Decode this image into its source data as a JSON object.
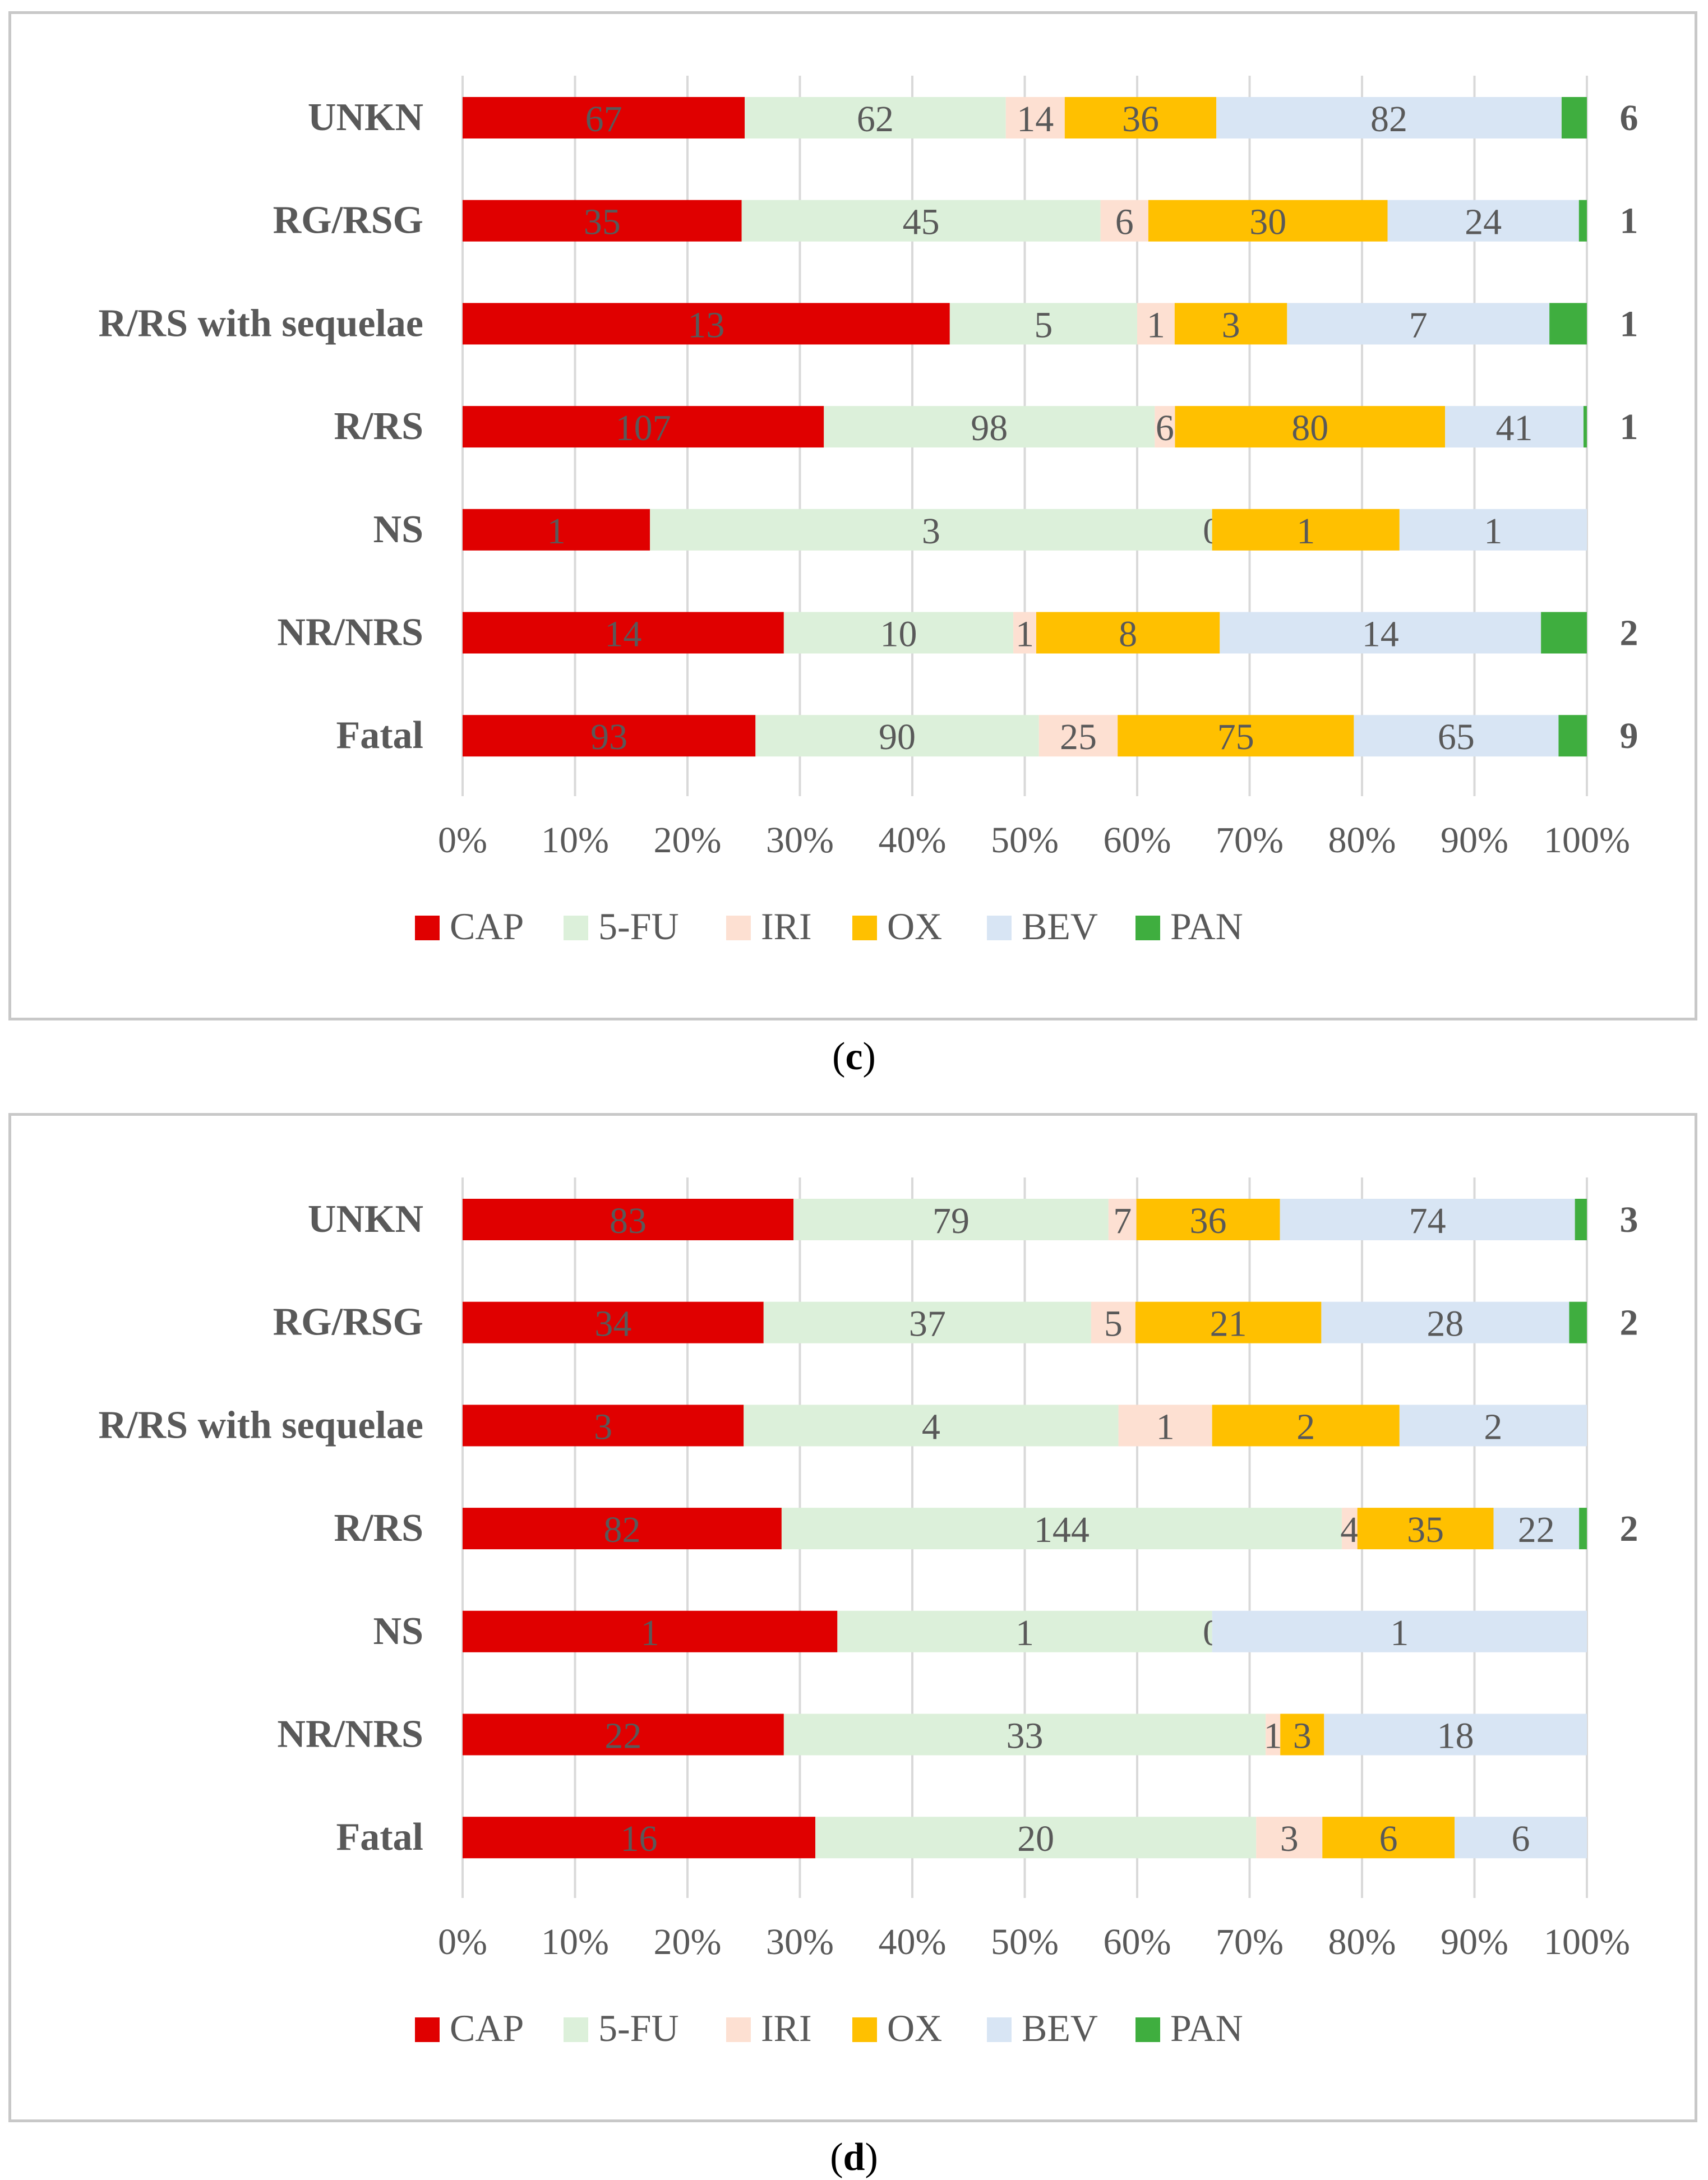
{
  "colors": {
    "CAP": "#e00000",
    "5-FU": "#dcf0da",
    "IRI": "#fde0d2",
    "OX": "#ffc000",
    "BEV": "#d8e5f4",
    "PAN": "#3fae3f"
  },
  "captions": {
    "c_letter": "c",
    "d_letter": "d"
  },
  "chart_data": [
    {
      "id": "c",
      "type": "bar",
      "orientation": "horizontal",
      "stacked": "percent",
      "categories": [
        "UNKN",
        "RG/RSG",
        "R/RS with sequelae",
        "R/RS",
        "NS",
        "NR/NRS",
        "Fatal"
      ],
      "series": [
        {
          "name": "CAP",
          "values": [
            67,
            35,
            13,
            107,
            1,
            14,
            93
          ]
        },
        {
          "name": "5-FU",
          "values": [
            62,
            45,
            5,
            98,
            3,
            10,
            90
          ]
        },
        {
          "name": "IRI",
          "values": [
            14,
            6,
            1,
            6,
            0,
            1,
            25
          ]
        },
        {
          "name": "OX",
          "values": [
            36,
            30,
            3,
            80,
            1,
            8,
            75
          ]
        },
        {
          "name": "BEV",
          "values": [
            82,
            24,
            7,
            41,
            1,
            14,
            65
          ]
        },
        {
          "name": "PAN",
          "values": [
            6,
            1,
            1,
            1,
            0,
            2,
            9
          ]
        }
      ],
      "xticks": [
        "0%",
        "10%",
        "20%",
        "30%",
        "40%",
        "50%",
        "60%",
        "70%",
        "80%",
        "90%",
        "100%"
      ],
      "xlim": [
        0,
        100
      ],
      "legend": [
        "CAP",
        "5-FU",
        "IRI",
        "OX",
        "BEV",
        "PAN"
      ],
      "legend_position": "bottom",
      "grid": true
    },
    {
      "id": "d",
      "type": "bar",
      "orientation": "horizontal",
      "stacked": "percent",
      "categories": [
        "UNKN",
        "RG/RSG",
        "R/RS with sequelae",
        "R/RS",
        "NS",
        "NR/NRS",
        "Fatal"
      ],
      "series": [
        {
          "name": "CAP",
          "values": [
            83,
            34,
            3,
            82,
            1,
            22,
            16
          ]
        },
        {
          "name": "5-FU",
          "values": [
            79,
            37,
            4,
            144,
            1,
            33,
            20
          ]
        },
        {
          "name": "IRI",
          "values": [
            7,
            5,
            1,
            4,
            0,
            1,
            3
          ]
        },
        {
          "name": "OX",
          "values": [
            36,
            21,
            2,
            35,
            0,
            3,
            6
          ]
        },
        {
          "name": "BEV",
          "values": [
            74,
            28,
            2,
            22,
            1,
            18,
            6
          ]
        },
        {
          "name": "PAN",
          "values": [
            3,
            2,
            0,
            2,
            0,
            0,
            0
          ]
        }
      ],
      "xticks": [
        "0%",
        "10%",
        "20%",
        "30%",
        "40%",
        "50%",
        "60%",
        "70%",
        "80%",
        "90%",
        "100%"
      ],
      "xlim": [
        0,
        100
      ],
      "legend": [
        "CAP",
        "5-FU",
        "IRI",
        "OX",
        "BEV",
        "PAN"
      ],
      "legend_position": "bottom",
      "grid": true
    }
  ]
}
